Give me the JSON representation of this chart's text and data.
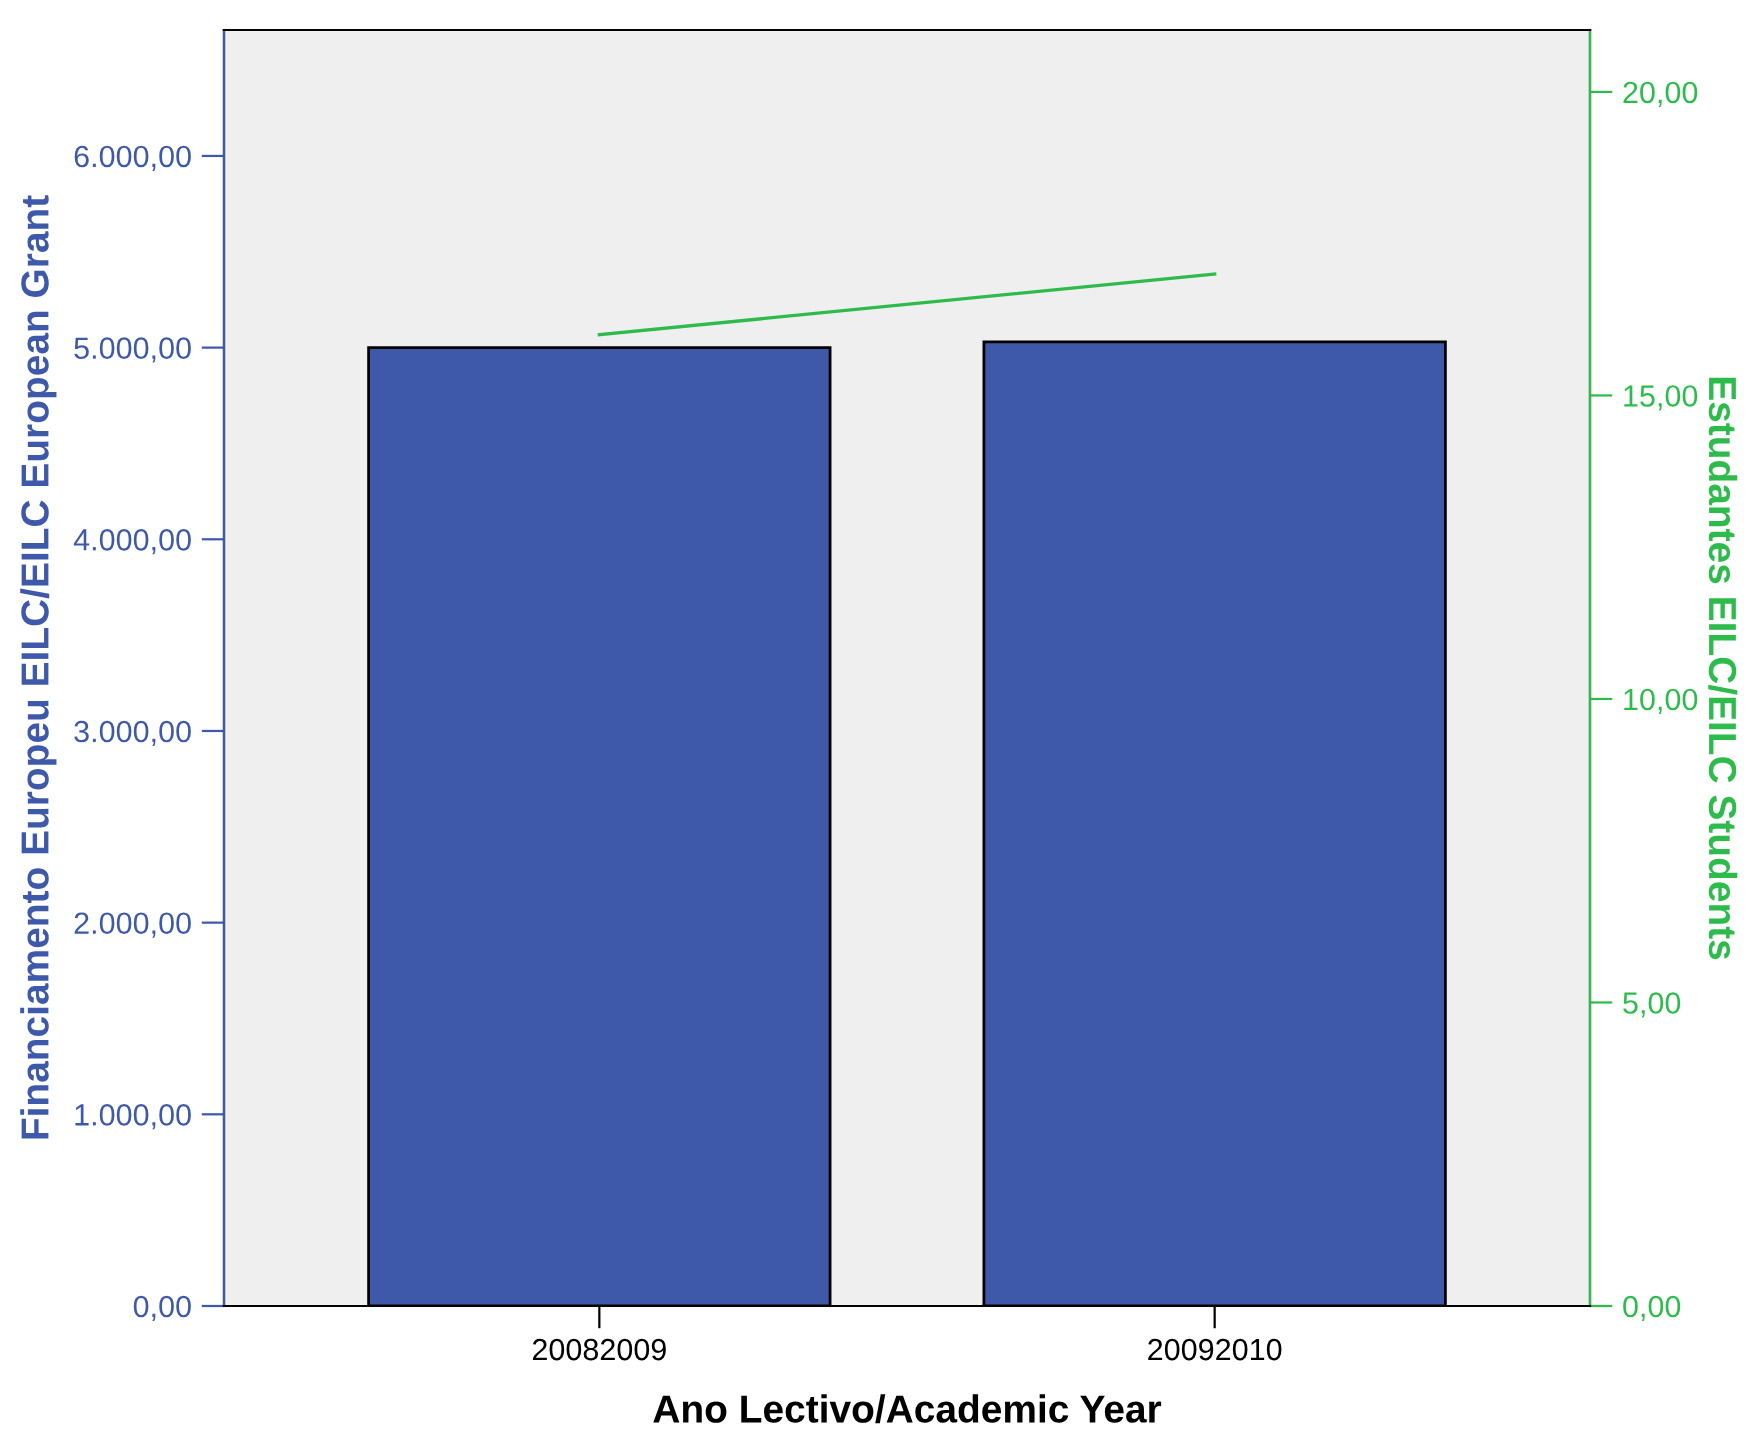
{
  "chart_data": {
    "type": "bar",
    "xlabel": "Ano Lectivo/Academic Year",
    "ylabel": "Financiamento Europeu EILC/EILC European Grant",
    "y2label": "Estudantes EILC/EILC Students",
    "categories": [
      "20082009",
      "20092010"
    ],
    "series": [
      {
        "color": "#3f59aa",
        "values": [
          5000,
          5030
        ]
      },
      {
        "type": "line",
        "axis": "y2",
        "color": "#2dbb4b",
        "values": [
          16,
          17
        ]
      }
    ],
    "ylim": [
      0,
      6657
    ],
    "yticks": [
      {
        "value": 0,
        "label": "0,00"
      },
      {
        "value": 1000,
        "label": "1.000,00"
      },
      {
        "value": 2000,
        "label": "2.000,00"
      },
      {
        "value": 3000,
        "label": "3.000,00"
      },
      {
        "value": 4000,
        "label": "4.000,00"
      },
      {
        "value": 5000,
        "label": "5.000,00"
      },
      {
        "value": 6000,
        "label": "6.000,00"
      }
    ],
    "y2lim": [
      0,
      21.02
    ],
    "y2ticks": [
      {
        "value": 0,
        "label": "0,00"
      },
      {
        "value": 5,
        "label": "5,00"
      },
      {
        "value": 10,
        "label": "10,00"
      },
      {
        "value": 15,
        "label": "15,00"
      },
      {
        "value": 20,
        "label": "20,00"
      }
    ],
    "grid": false,
    "legend": false,
    "marker": "none",
    "line_style": "solid"
  }
}
